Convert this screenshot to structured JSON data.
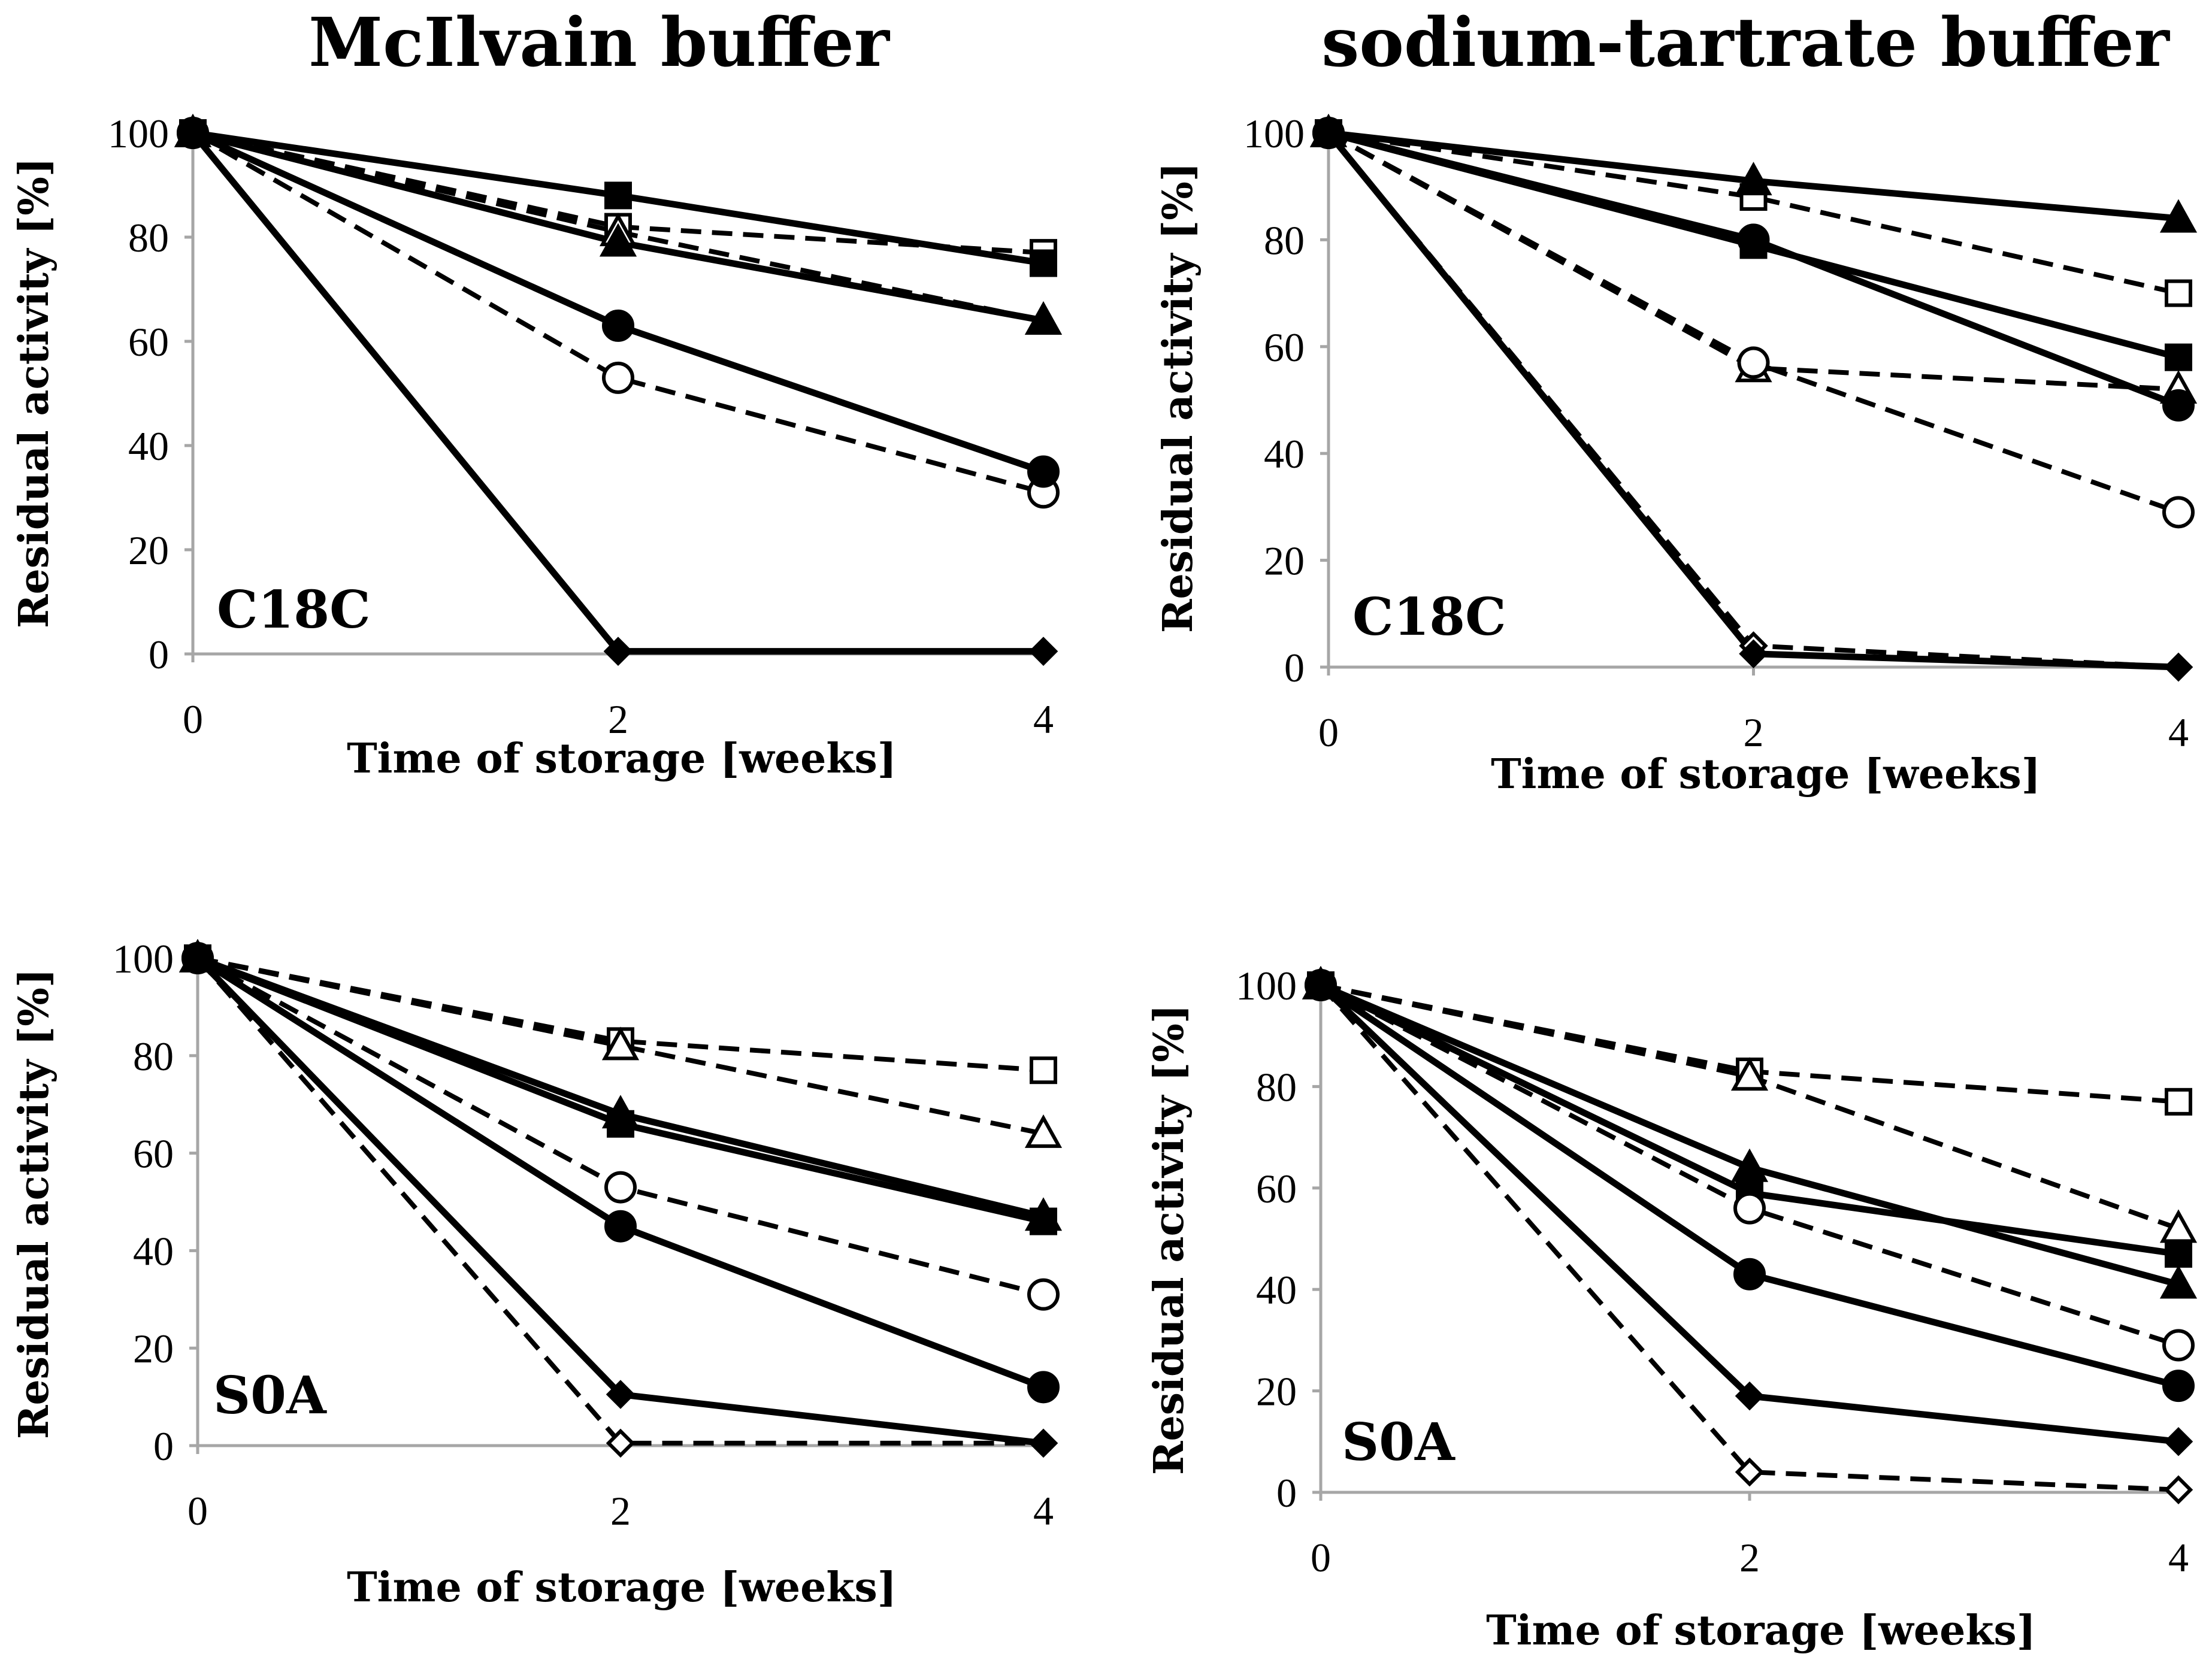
{
  "column_titles": [
    "McIlvain buffer",
    "sodium-tartrate buffer"
  ],
  "chart_data": [
    {
      "type": "line",
      "panel": "C18C",
      "buffer": "McIlvain buffer",
      "x": [
        0,
        2,
        4
      ],
      "xticks": [
        "0",
        "2",
        "4"
      ],
      "yticks": [
        "0",
        "20",
        "40",
        "60",
        "80",
        "100"
      ],
      "xlabel": "Time of storage [weeks]",
      "ylabel": "Residual activity [%]",
      "xlim": [
        0,
        4
      ],
      "ylim": [
        0,
        100
      ],
      "series": [
        {
          "marker": "square",
          "filled": false,
          "dashed": true,
          "values": [
            100,
            82,
            77
          ]
        },
        {
          "marker": "square",
          "filled": true,
          "dashed": false,
          "values": [
            100,
            88,
            75
          ]
        },
        {
          "marker": "triangle",
          "filled": false,
          "dashed": true,
          "values": [
            100,
            81,
            64
          ]
        },
        {
          "marker": "triangle",
          "filled": true,
          "dashed": false,
          "values": [
            100,
            79,
            64
          ]
        },
        {
          "marker": "circle",
          "filled": false,
          "dashed": true,
          "values": [
            100,
            53,
            31
          ]
        },
        {
          "marker": "circle",
          "filled": true,
          "dashed": false,
          "values": [
            100,
            63,
            35
          ]
        },
        {
          "marker": "diamond",
          "filled": false,
          "dashed": true,
          "values": [
            100,
            0.5,
            0.5
          ]
        },
        {
          "marker": "diamond",
          "filled": true,
          "dashed": false,
          "values": [
            100,
            0.5,
            0.5
          ]
        }
      ]
    },
    {
      "type": "line",
      "panel": "C18C",
      "buffer": "sodium-tartrate buffer",
      "x": [
        0,
        2,
        4
      ],
      "xticks": [
        "0",
        "2",
        "4"
      ],
      "yticks": [
        "0",
        "20",
        "40",
        "60",
        "80",
        "100"
      ],
      "xlabel": "Time of storage [weeks]",
      "ylabel": "Residual activity [%]",
      "xlim": [
        0,
        4
      ],
      "ylim": [
        0,
        100
      ],
      "series": [
        {
          "marker": "square",
          "filled": false,
          "dashed": true,
          "values": [
            100,
            88,
            70
          ]
        },
        {
          "marker": "square",
          "filled": true,
          "dashed": false,
          "values": [
            100,
            79,
            58
          ]
        },
        {
          "marker": "triangle",
          "filled": false,
          "dashed": true,
          "values": [
            100,
            56,
            52
          ]
        },
        {
          "marker": "triangle",
          "filled": true,
          "dashed": false,
          "values": [
            100,
            91,
            84
          ]
        },
        {
          "marker": "circle",
          "filled": false,
          "dashed": true,
          "values": [
            100,
            57,
            29
          ]
        },
        {
          "marker": "circle",
          "filled": true,
          "dashed": false,
          "values": [
            100,
            80,
            49
          ]
        },
        {
          "marker": "diamond",
          "filled": false,
          "dashed": true,
          "values": [
            100,
            4,
            0
          ]
        },
        {
          "marker": "diamond",
          "filled": true,
          "dashed": false,
          "values": [
            100,
            2.5,
            0
          ]
        }
      ]
    },
    {
      "type": "line",
      "panel": "S0A",
      "buffer": "McIlvain buffer",
      "x": [
        0,
        2,
        4
      ],
      "xticks": [
        "0",
        "2",
        "4"
      ],
      "yticks": [
        "0",
        "20",
        "40",
        "60",
        "80",
        "100"
      ],
      "xlabel": "Time of storage [weeks]",
      "ylabel": "Residual activity [%]",
      "xlim": [
        0,
        4
      ],
      "ylim": [
        0,
        100
      ],
      "series": [
        {
          "marker": "square",
          "filled": false,
          "dashed": true,
          "values": [
            100,
            83,
            77
          ]
        },
        {
          "marker": "square",
          "filled": true,
          "dashed": false,
          "values": [
            100,
            66,
            46
          ]
        },
        {
          "marker": "triangle",
          "filled": false,
          "dashed": true,
          "values": [
            100,
            82,
            64
          ]
        },
        {
          "marker": "triangle",
          "filled": true,
          "dashed": false,
          "values": [
            100,
            68,
            47
          ]
        },
        {
          "marker": "circle",
          "filled": false,
          "dashed": true,
          "values": [
            100,
            53,
            31
          ]
        },
        {
          "marker": "circle",
          "filled": true,
          "dashed": false,
          "values": [
            100,
            45,
            12
          ]
        },
        {
          "marker": "diamond",
          "filled": false,
          "dashed": true,
          "values": [
            100,
            0.5,
            0.5
          ]
        },
        {
          "marker": "diamond",
          "filled": true,
          "dashed": false,
          "values": [
            100,
            10.5,
            0.5
          ]
        }
      ]
    },
    {
      "type": "line",
      "panel": "S0A",
      "buffer": "sodium-tartrate buffer",
      "x": [
        0,
        2,
        4
      ],
      "xticks": [
        "0",
        "2",
        "4"
      ],
      "yticks": [
        "0",
        "20",
        "40",
        "60",
        "80",
        "100"
      ],
      "xlabel": "Time of storage [weeks]",
      "ylabel": "Residual activity [%]",
      "xlim": [
        0,
        4
      ],
      "ylim": [
        0,
        100
      ],
      "series": [
        {
          "marker": "square",
          "filled": false,
          "dashed": true,
          "values": [
            100,
            83,
            77
          ]
        },
        {
          "marker": "square",
          "filled": true,
          "dashed": false,
          "values": [
            100,
            59,
            47
          ]
        },
        {
          "marker": "triangle",
          "filled": false,
          "dashed": true,
          "values": [
            100,
            82,
            52
          ]
        },
        {
          "marker": "triangle",
          "filled": true,
          "dashed": false,
          "values": [
            100,
            64,
            41
          ]
        },
        {
          "marker": "circle",
          "filled": false,
          "dashed": true,
          "values": [
            100,
            56,
            29
          ]
        },
        {
          "marker": "circle",
          "filled": true,
          "dashed": false,
          "values": [
            100,
            43,
            21
          ]
        },
        {
          "marker": "diamond",
          "filled": false,
          "dashed": true,
          "values": [
            100,
            4,
            0.5
          ]
        },
        {
          "marker": "diamond",
          "filled": true,
          "dashed": false,
          "values": [
            100,
            19,
            10
          ]
        }
      ]
    }
  ]
}
